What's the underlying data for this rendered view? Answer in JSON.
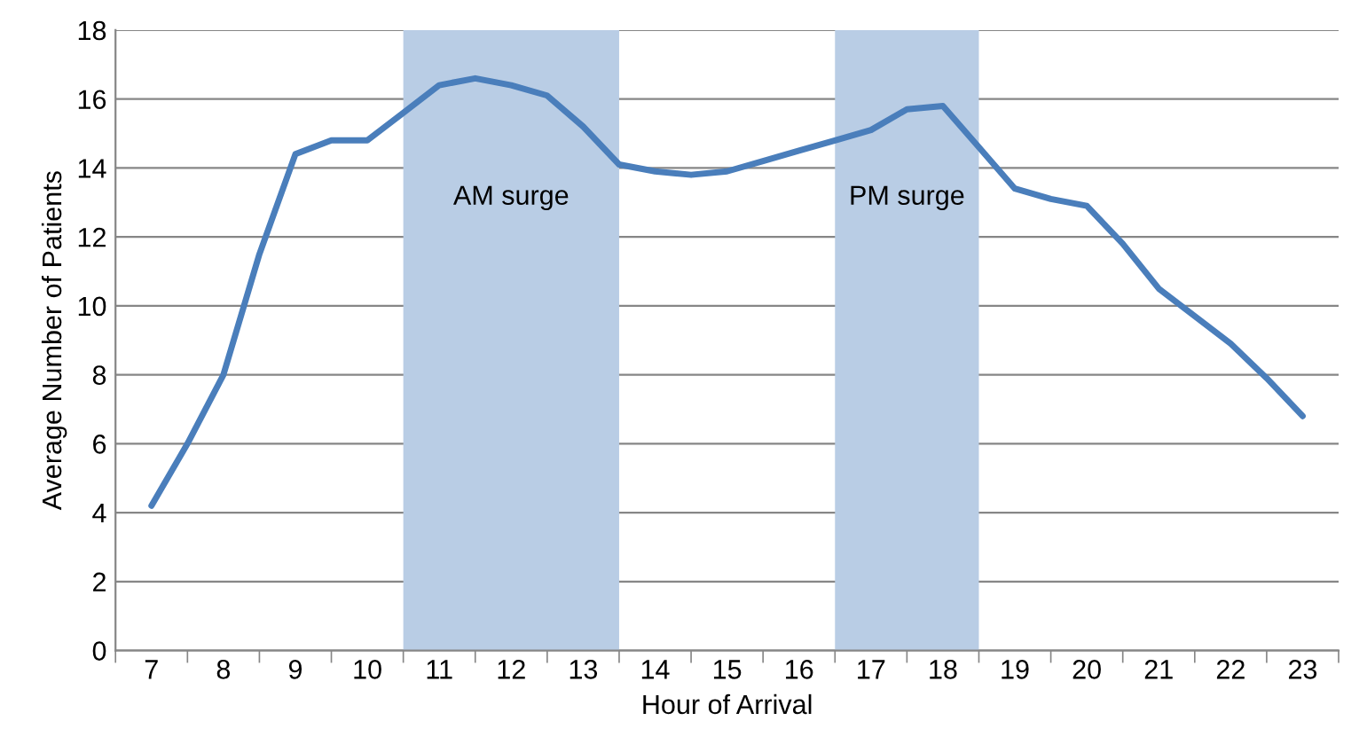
{
  "chart_data": {
    "type": "line",
    "xlabel": "Hour of Arrival",
    "ylabel": "Average Number of Patients",
    "x": [
      7,
      7.5,
      8,
      8.5,
      9,
      9.5,
      10,
      10.5,
      11,
      11.5,
      12,
      12.5,
      13,
      13.5,
      14,
      14.5,
      15,
      15.5,
      16,
      16.5,
      17,
      17.5,
      18,
      18.5,
      19,
      19.5,
      20,
      20.5,
      21,
      21.5,
      22,
      22.5,
      23
    ],
    "series": [
      {
        "color": "#4a7ebb",
        "values": [
          4.2,
          6.0,
          8.0,
          11.5,
          14.4,
          14.8,
          14.8,
          15.6,
          16.4,
          16.6,
          16.4,
          16.1,
          15.2,
          14.1,
          13.9,
          13.8,
          13.9,
          14.2,
          14.5,
          14.8,
          15.1,
          15.7,
          15.8,
          14.6,
          13.4,
          13.1,
          12.9,
          11.8,
          10.5,
          9.7,
          8.9,
          7.9,
          6.8
        ]
      }
    ],
    "xlim": [
      6.5,
      23.5
    ],
    "xticks": [
      7,
      8,
      9,
      10,
      11,
      12,
      13,
      14,
      15,
      16,
      17,
      18,
      19,
      20,
      21,
      22,
      23
    ],
    "ylim": [
      0,
      18
    ],
    "yticks": [
      0,
      2,
      4,
      6,
      8,
      10,
      12,
      14,
      16,
      18
    ],
    "bands": [
      {
        "axis": "x",
        "from": 10.5,
        "to": 13.5,
        "label": "AM surge",
        "color": "#b9cde5"
      },
      {
        "axis": "x",
        "from": 16.5,
        "to": 18.5,
        "label": "PM surge",
        "color": "#b9cde5"
      }
    ],
    "grid": "y",
    "marker": "none",
    "line_style": "solid",
    "legend": false
  }
}
